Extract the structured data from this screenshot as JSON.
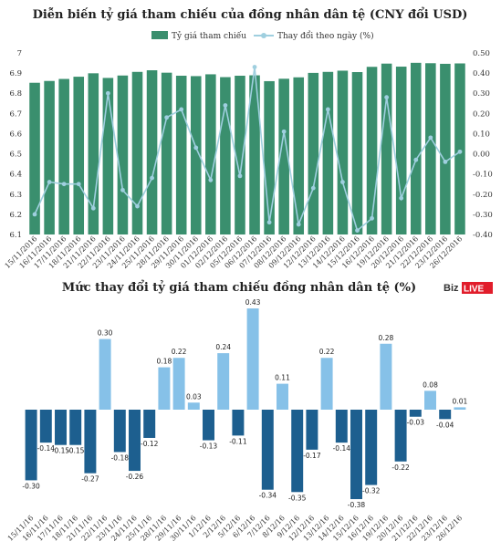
{
  "colors": {
    "bar_green": "#3a8f6e",
    "line_light": "#9fcfdf",
    "neg_dark": "#1d5f8f",
    "pos_light": "#86c1e8",
    "brand_red": "#e11d2b"
  },
  "brand": {
    "prefix": "Biz",
    "suffix": "LIVE"
  },
  "chart_data": [
    {
      "type": "bar",
      "title": "Diễn biến tỷ giá tham chiếu của đồng nhân dân tệ (CNY đổi USD)",
      "legend": [
        "Tỷ giá tham chiếu",
        "Thay đổi theo ngày (%)"
      ],
      "legend_placement": "top",
      "categories": [
        "15/11/2016",
        "16/11/2016",
        "17/11/2016",
        "18/11/2016",
        "21/11/2016",
        "22/11/2016",
        "23/11/2016",
        "24/11/2016",
        "25/11/2016",
        "28/11/2016",
        "29/11/2016",
        "30/11/2016",
        "01/12/2016",
        "02/12/2016",
        "05/12/2016",
        "06/12/2016",
        "07/12/2016",
        "08/12/2016",
        "09/12/2016",
        "12/12/2016",
        "13/12/2016",
        "14/12/2016",
        "15/12/2016",
        "16/12/2016",
        "19/12/2016",
        "20/12/2016",
        "21/12/2016",
        "22/12/2016",
        "23/12/2016",
        "26/12/2016"
      ],
      "y_left": {
        "ticks": [
          "6.1",
          "6.2",
          "6.3",
          "6.4",
          "6.5",
          "6.6",
          "6.7",
          "6.8",
          "6.9",
          "7"
        ],
        "range": [
          6.1,
          7.0
        ]
      },
      "y_right": {
        "ticks": [
          "-0.40",
          "-0.30",
          "-0.20",
          "-0.10",
          "0.00",
          "0.10",
          "0.20",
          "0.30",
          "0.40",
          "0.50"
        ],
        "range": [
          -0.4,
          0.5
        ]
      },
      "series": [
        {
          "name": "Tỷ giá tham chiếu",
          "type": "bar",
          "axis": "left",
          "values": [
            6.852,
            6.861,
            6.871,
            6.882,
            6.899,
            6.876,
            6.888,
            6.906,
            6.914,
            6.902,
            6.887,
            6.885,
            6.894,
            6.88,
            6.887,
            6.889,
            6.86,
            6.872,
            6.879,
            6.901,
            6.906,
            6.912,
            6.905,
            6.931,
            6.947,
            6.932,
            6.951,
            6.949,
            6.946,
            6.948
          ]
        },
        {
          "name": "Thay đổi theo ngày (%)",
          "type": "line",
          "axis": "right",
          "values": [
            -0.3,
            -0.14,
            -0.15,
            -0.15,
            -0.27,
            0.3,
            -0.18,
            -0.26,
            -0.12,
            0.18,
            0.22,
            0.03,
            -0.13,
            0.24,
            -0.11,
            0.43,
            -0.34,
            0.11,
            -0.35,
            -0.17,
            0.22,
            -0.14,
            -0.38,
            -0.32,
            0.28,
            -0.22,
            -0.03,
            0.08,
            -0.04,
            0.01
          ]
        }
      ]
    },
    {
      "type": "bar",
      "title": "Mức thay đổi tỷ giá tham chiếu đồng nhân dân tệ (%)",
      "categories": [
        "15/11/16",
        "16/11/16",
        "17/11/16",
        "18/11/16",
        "21/11/16",
        "22/11/16",
        "23/11/16",
        "24/11/16",
        "25/11/16",
        "28/11/16",
        "29/11/16",
        "30/11/16",
        "1/12/16",
        "2/12/16",
        "5/12/16",
        "6/12/16",
        "7/12/16",
        "8/12/16",
        "9/12/16",
        "12/12/16",
        "13/12/16",
        "14/12/16",
        "15/12/16",
        "16/12/16",
        "19/12/16",
        "20/12/16",
        "21/12/16",
        "22/12/16",
        "23/12/16",
        "26/12/16"
      ],
      "values": [
        -0.3,
        -0.14,
        -0.15,
        -0.15,
        -0.27,
        0.3,
        -0.18,
        -0.26,
        -0.12,
        0.18,
        0.22,
        0.03,
        -0.13,
        0.24,
        -0.11,
        0.43,
        -0.34,
        0.11,
        -0.35,
        -0.17,
        0.22,
        -0.14,
        -0.38,
        -0.32,
        0.28,
        -0.22,
        -0.03,
        0.08,
        -0.04,
        0.01
      ],
      "data_labels": [
        "-0.30",
        "-0.14",
        "-0.15",
        "-0.15",
        "-0.27",
        "0.30",
        "-0.18",
        "-0.26",
        "-0.12",
        "0.18",
        "0.22",
        "0.03",
        "-0.13",
        "0.24",
        "-0.11",
        "0.43",
        "-0.34",
        "0.11",
        "-0.35",
        "-0.17",
        "0.22",
        "-0.14",
        "-0.38",
        "-0.32",
        "0.28",
        "-0.22",
        "-0.03",
        "0.08",
        "-0.04",
        "0.01"
      ]
    }
  ]
}
